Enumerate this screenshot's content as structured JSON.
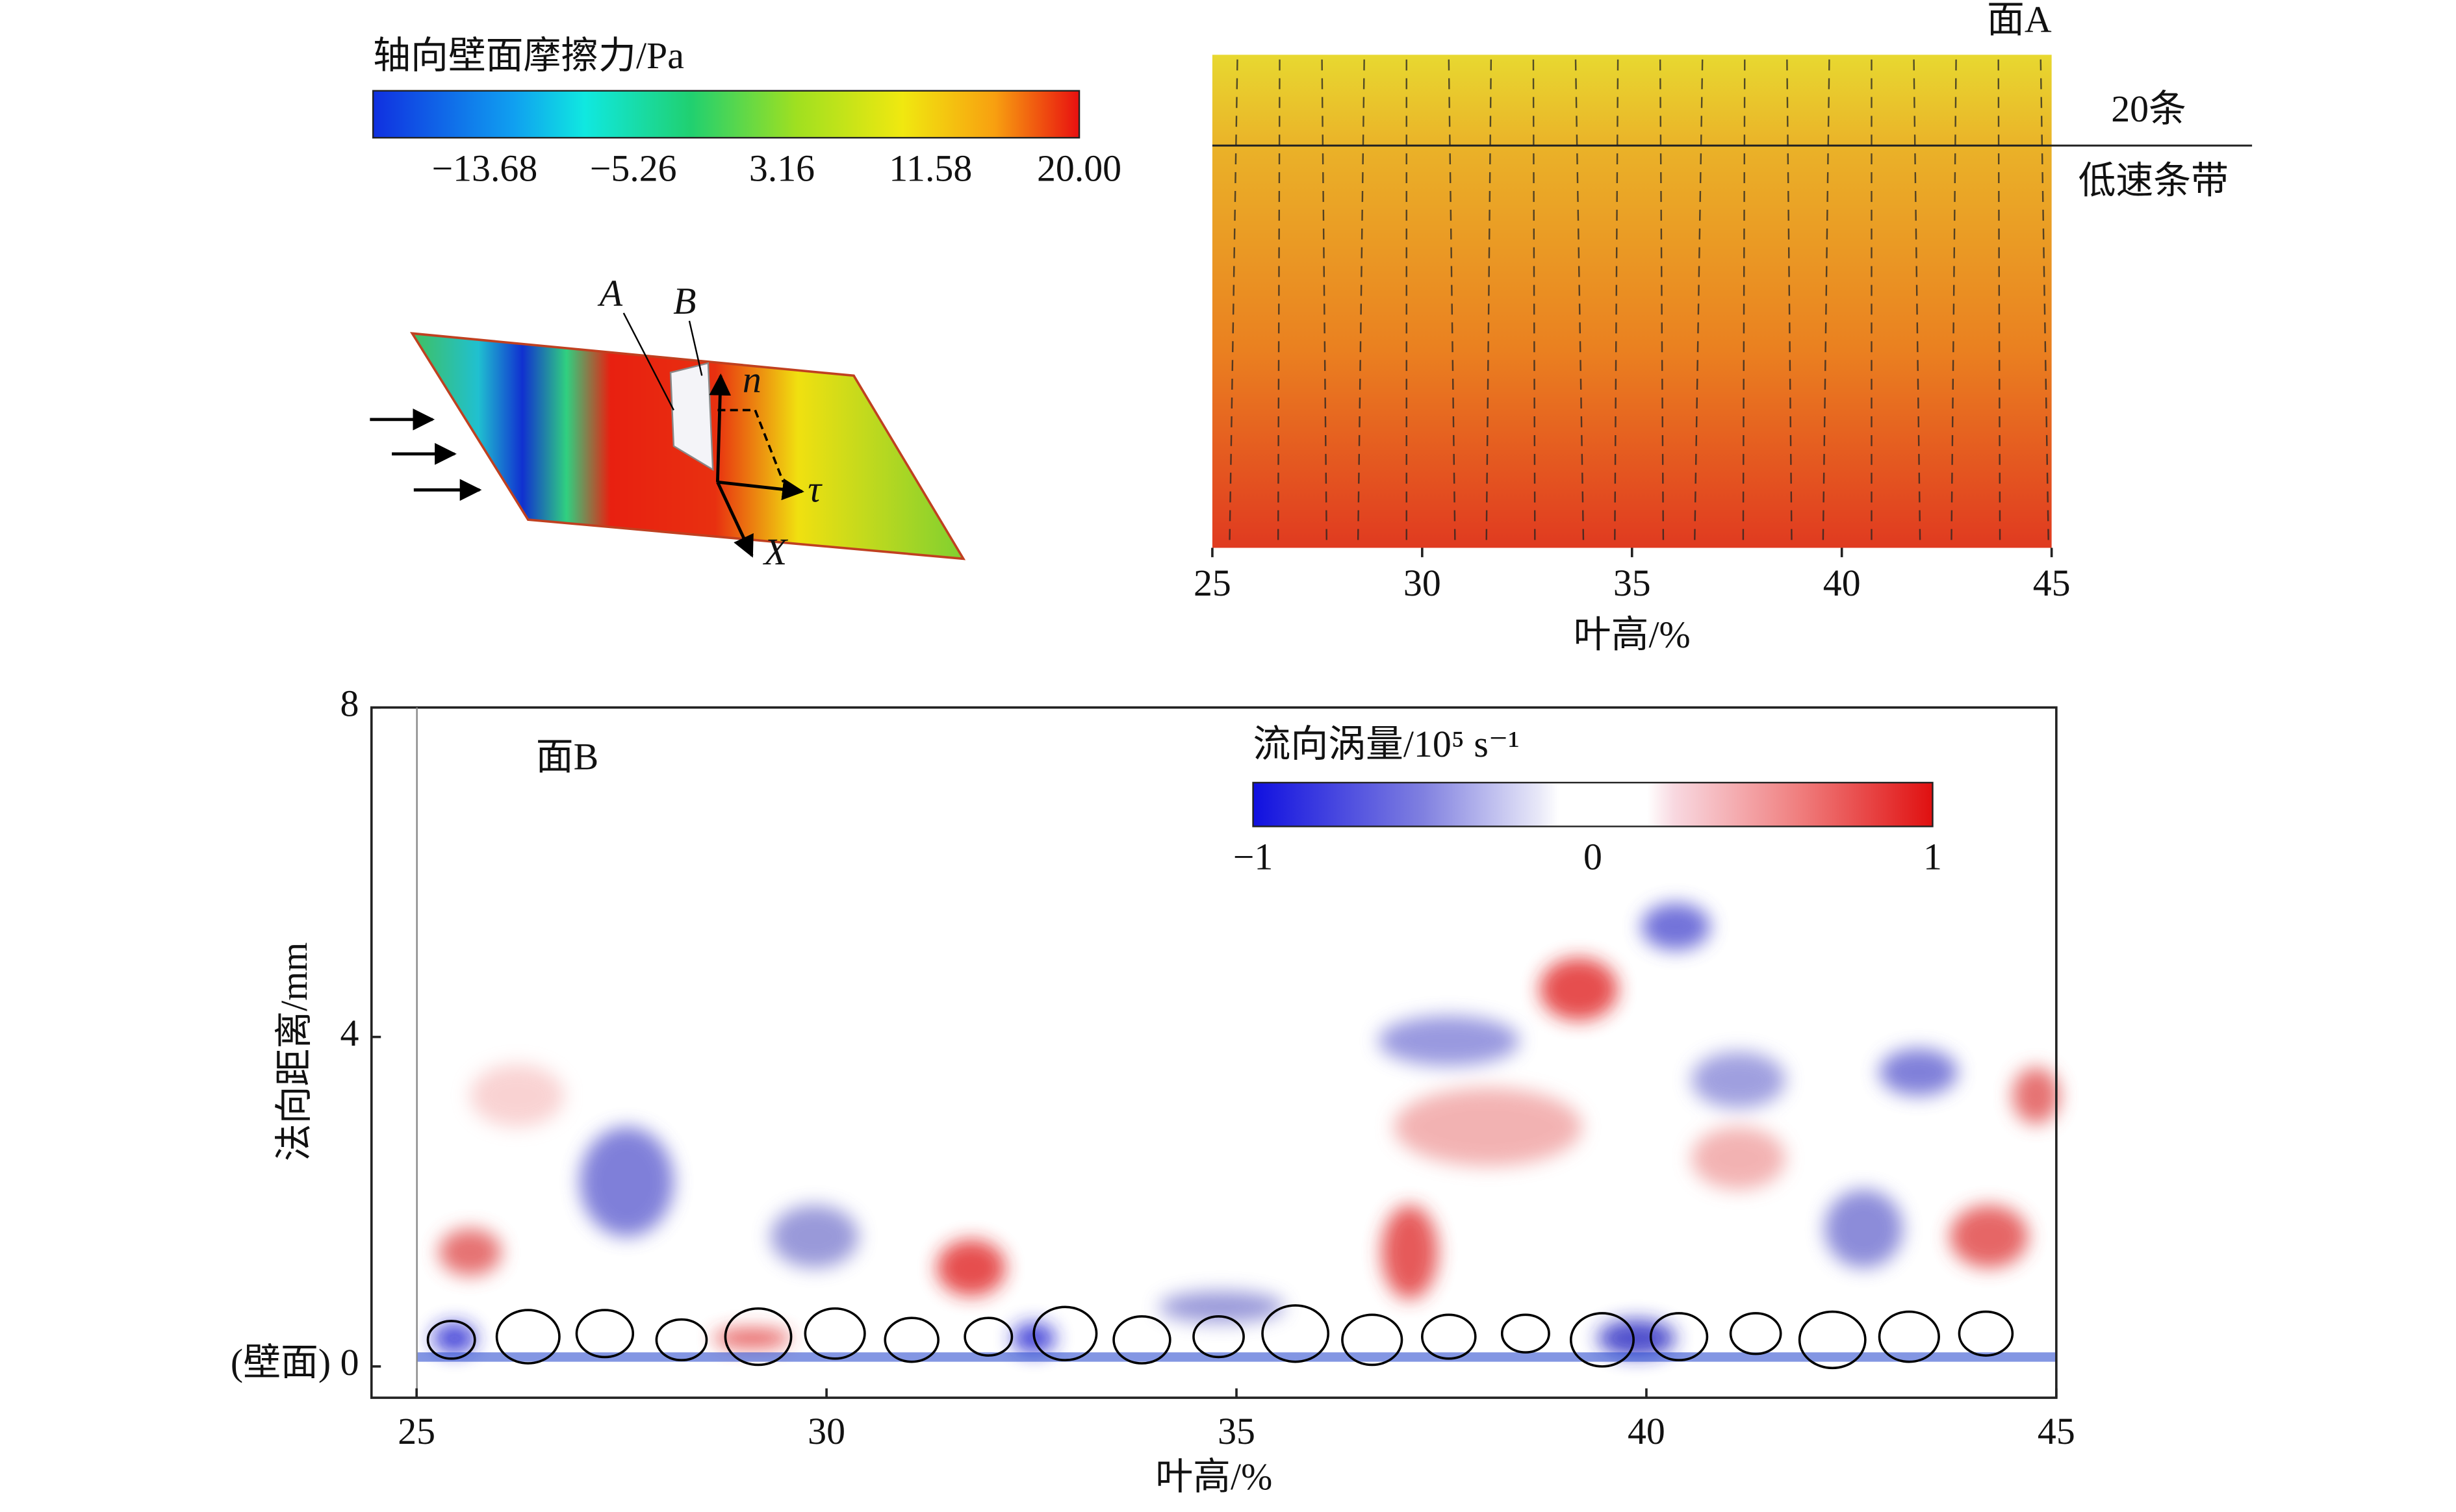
{
  "friction_colorbar": {
    "title": "轴向壁面摩擦力/Pa",
    "lim": [
      -20,
      20
    ],
    "ticks": [
      {
        "value": -13.68,
        "label": "−13.68"
      },
      {
        "value": -5.26,
        "label": "−5.26"
      },
      3.16,
      11.58,
      {
        "value": 20,
        "label": "20.00"
      }
    ]
  },
  "diagram": {
    "labels": [
      "A",
      "B",
      "n",
      "τ",
      "X"
    ]
  },
  "face_a": {
    "title": "面A",
    "streak_count": "20条",
    "streak_label": "低速条带",
    "xlabel": "叶高/%",
    "xlim": [
      25,
      45
    ],
    "xticks": [
      25,
      30,
      35,
      40,
      45
    ]
  },
  "face_b": {
    "title": "面B",
    "xlabel": "叶高/%",
    "ylabel": "法向距离/mm",
    "xlim": [
      24.45,
      45
    ],
    "ylim": [
      -0.38,
      8
    ],
    "xticks": [
      25,
      30,
      35,
      40,
      45
    ],
    "yticks": [
      {
        "value": 0,
        "label": "(壁面) 0"
      },
      4,
      8
    ],
    "colorbar_title": "流向涡量/10⁵ s⁻¹",
    "colorbar_lim": [
      -1,
      1
    ],
    "colorbar_ticks": [
      {
        "value": -1,
        "label": "−1"
      },
      0,
      1
    ]
  }
}
